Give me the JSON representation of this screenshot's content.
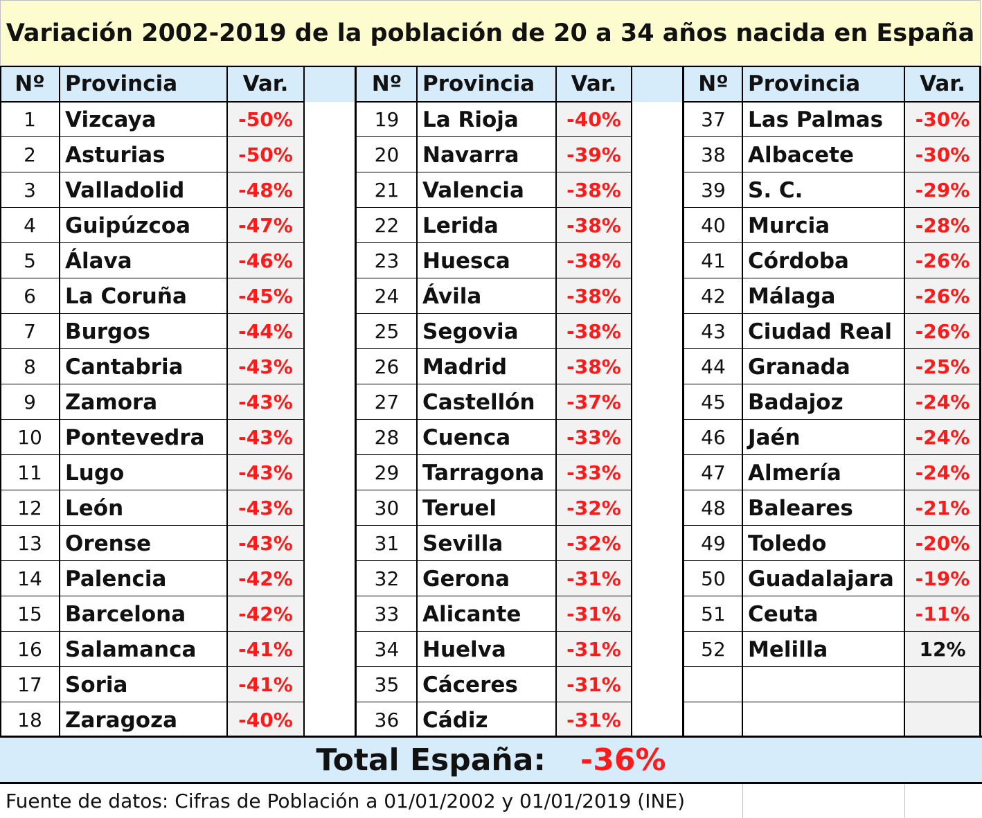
{
  "title": "Variación 2002-2019 de la población de 20 a 34 años nacida en España",
  "headers": {
    "num": "Nº",
    "provincia": "Provincia",
    "var": "Var."
  },
  "rows": [
    {
      "n": "1",
      "p": "Vizcaya",
      "v": "-50%"
    },
    {
      "n": "2",
      "p": "Asturias",
      "v": "-50%"
    },
    {
      "n": "3",
      "p": "Valladolid",
      "v": "-48%"
    },
    {
      "n": "4",
      "p": "Guipúzcoa",
      "v": "-47%"
    },
    {
      "n": "5",
      "p": "Álava",
      "v": "-46%"
    },
    {
      "n": "6",
      "p": "La Coruña",
      "v": "-45%"
    },
    {
      "n": "7",
      "p": "Burgos",
      "v": "-44%"
    },
    {
      "n": "8",
      "p": "Cantabria",
      "v": "-43%"
    },
    {
      "n": "9",
      "p": "Zamora",
      "v": "-43%"
    },
    {
      "n": "10",
      "p": "Pontevedra",
      "v": "-43%"
    },
    {
      "n": "11",
      "p": "Lugo",
      "v": "-43%"
    },
    {
      "n": "12",
      "p": "León",
      "v": "-43%"
    },
    {
      "n": "13",
      "p": "Orense",
      "v": "-43%"
    },
    {
      "n": "14",
      "p": "Palencia",
      "v": "-42%"
    },
    {
      "n": "15",
      "p": "Barcelona",
      "v": "-42%"
    },
    {
      "n": "16",
      "p": "Salamanca",
      "v": "-41%"
    },
    {
      "n": "17",
      "p": "Soria",
      "v": "-41%"
    },
    {
      "n": "18",
      "p": "Zaragoza",
      "v": "-40%"
    },
    {
      "n": "19",
      "p": "La Rioja",
      "v": "-40%"
    },
    {
      "n": "20",
      "p": "Navarra",
      "v": "-39%"
    },
    {
      "n": "21",
      "p": "Valencia",
      "v": "-38%"
    },
    {
      "n": "22",
      "p": "Lerida",
      "v": "-38%"
    },
    {
      "n": "23",
      "p": "Huesca",
      "v": "-38%"
    },
    {
      "n": "24",
      "p": "Ávila",
      "v": "-38%"
    },
    {
      "n": "25",
      "p": "Segovia",
      "v": "-38%"
    },
    {
      "n": "26",
      "p": "Madrid",
      "v": "-38%"
    },
    {
      "n": "27",
      "p": "Castellón",
      "v": "-37%"
    },
    {
      "n": "28",
      "p": "Cuenca",
      "v": "-33%"
    },
    {
      "n": "29",
      "p": "Tarragona",
      "v": "-33%"
    },
    {
      "n": "30",
      "p": "Teruel",
      "v": "-32%"
    },
    {
      "n": "31",
      "p": "Sevilla",
      "v": "-32%"
    },
    {
      "n": "32",
      "p": "Gerona",
      "v": "-31%"
    },
    {
      "n": "33",
      "p": "Alicante",
      "v": "-31%"
    },
    {
      "n": "34",
      "p": "Huelva",
      "v": "-31%"
    },
    {
      "n": "35",
      "p": "Cáceres",
      "v": "-31%"
    },
    {
      "n": "36",
      "p": "Cádiz",
      "v": "-31%"
    },
    {
      "n": "37",
      "p": "Las Palmas",
      "v": "-30%"
    },
    {
      "n": "38",
      "p": "Albacete",
      "v": "-30%"
    },
    {
      "n": "39",
      "p": "S. C.",
      "v": "-29%"
    },
    {
      "n": "40",
      "p": "Murcia",
      "v": "-28%"
    },
    {
      "n": "41",
      "p": "Córdoba",
      "v": "-26%"
    },
    {
      "n": "42",
      "p": "Málaga",
      "v": "-26%"
    },
    {
      "n": "43",
      "p": "Ciudad Real",
      "v": "-26%"
    },
    {
      "n": "44",
      "p": "Granada",
      "v": "-25%"
    },
    {
      "n": "45",
      "p": "Badajoz",
      "v": "-24%"
    },
    {
      "n": "46",
      "p": "Jaén",
      "v": "-24%"
    },
    {
      "n": "47",
      "p": "Almería",
      "v": "-24%"
    },
    {
      "n": "48",
      "p": "Baleares",
      "v": "-21%"
    },
    {
      "n": "49",
      "p": "Toledo",
      "v": "-20%"
    },
    {
      "n": "50",
      "p": "Guadalajara",
      "v": "-19%"
    },
    {
      "n": "51",
      "p": "Ceuta",
      "v": "-11%"
    },
    {
      "n": "52",
      "p": "Melilla",
      "v": "12%"
    }
  ],
  "total": {
    "label": "Total España:",
    "value": "-36%"
  },
  "source": "Fuente de datos: Cifras de Población a 01/01/2002 y 01/01/2019 (INE)",
  "colors": {
    "negative": "#ff1a1a",
    "header_bg": "#d6ecfa",
    "title_bg": "#fdfccf"
  }
}
